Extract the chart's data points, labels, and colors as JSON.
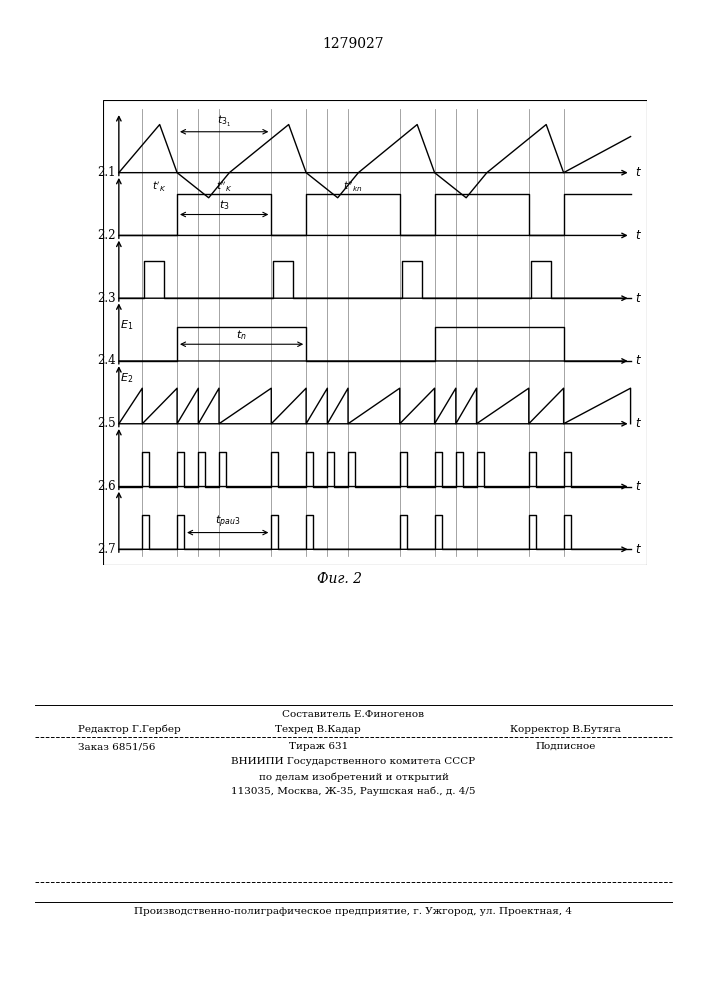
{
  "title": "1279027",
  "fig_label": "Фиг. 2",
  "background_color": "#ffffff",
  "line_color": "#000000",
  "trace_labels": [
    "2.1",
    "2.2",
    "2.3",
    "2.4",
    "2.5",
    "2.6",
    "2.7"
  ],
  "footer": {
    "author": "Составитель Е.Финогенов",
    "editor": "Редактор Г.Гербер",
    "techred": "Техред В.Кадар",
    "corrector": "Корректор В.Бутяга",
    "order": "Заказ 6851/56",
    "tirazh": "Тираж 631",
    "podp": "Подписное",
    "vniip1": "ВНИИПИ Государственного комитета СССР",
    "vniip2": "по делам изобретений и открытий",
    "address": "113035, Москва, Ж-35, Раушская наб., д. 4/5",
    "factory": "Производственно-полиграфическое предприятие, г. Ужгород, ул. Проектная, 4"
  }
}
